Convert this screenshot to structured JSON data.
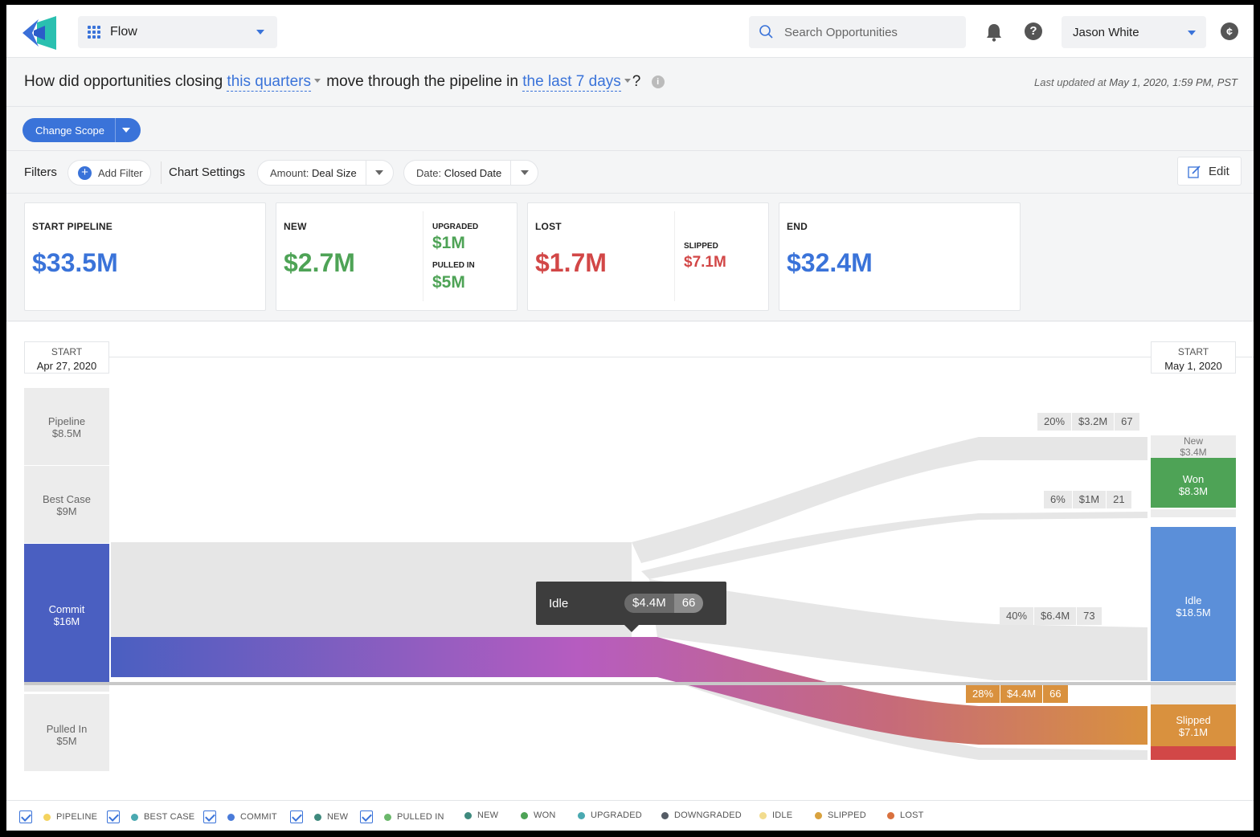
{
  "app": {
    "selector_label": "Flow"
  },
  "search": {
    "placeholder": "Search Opportunities"
  },
  "user": {
    "name": "Jason White"
  },
  "question": {
    "prefix": "How did opportunities closing",
    "scope_pick": "this quarters",
    "middle": "move through the pipeline in",
    "period_pick": "the last 7 days",
    "suffix": "?"
  },
  "updated": {
    "prefix": "Last updated at",
    "value": "May 1, 2020, 1:59 PM, PST"
  },
  "scope_button": "Change Scope",
  "filters": {
    "title": "Filters",
    "add_filter": "Add Filter",
    "chart_settings_title": "Chart Settings",
    "amount_prefix": "Amount:",
    "amount_value": "Deal Size",
    "date_prefix": "Date:",
    "date_value": "Closed Date",
    "edit": "Edit"
  },
  "kpis": {
    "start": {
      "title": "START PIPELINE",
      "value": "$33.5M"
    },
    "new": {
      "title": "NEW",
      "value": "$2.7M",
      "sub1_title": "UPGRADED",
      "sub1_value": "$1M",
      "sub2_title": "PULLED IN",
      "sub2_value": "$5M"
    },
    "lost": {
      "title": "LOST",
      "value": "$1.7M",
      "sub1_title": "SLIPPED",
      "sub1_value": "$7.1M"
    },
    "end": {
      "title": "END",
      "value": "$32.4M"
    }
  },
  "chart": {
    "left_header": {
      "label": "START",
      "date": "Apr 27, 2020"
    },
    "right_header": {
      "label": "START",
      "date": "May 1, 2020"
    },
    "left_stages": [
      {
        "name": "Pipeline",
        "amount": "$8.5M"
      },
      {
        "name": "Best Case",
        "amount": "$9M"
      },
      {
        "name": "Commit",
        "amount": "$16M"
      },
      {
        "name": "Pulled In",
        "amount": "$5M"
      }
    ],
    "right_stages": [
      {
        "name": "New",
        "amount": "$3.4M"
      },
      {
        "name": "Won",
        "amount": "$8.3M"
      },
      {
        "name": "Idle",
        "amount": "$18.5M"
      },
      {
        "name": "Slipped",
        "amount": "$7.1M"
      }
    ],
    "flow_tags": [
      {
        "pct": "20%",
        "amt": "$3.2M",
        "count": "67"
      },
      {
        "pct": "6%",
        "amt": "$1M",
        "count": "21"
      },
      {
        "pct": "40%",
        "amt": "$6.4M",
        "count": "73"
      },
      {
        "pct": "28%",
        "amt": "$4.4M",
        "count": "66"
      }
    ],
    "tooltip": {
      "label": "Idle",
      "amount": "$4.4M",
      "count": "66"
    },
    "colors": {
      "commit": "#4a5fc1",
      "won": "#4ea356",
      "idle": "#5b8fd9",
      "slipped": "#d9913e",
      "lost": "#d24747",
      "stage_grey": "#ececec"
    }
  },
  "legend": [
    {
      "label": "PIPELINE",
      "color": "#f4d35e",
      "checkbox": true
    },
    {
      "label": "BEST CASE",
      "color": "#4aa9b1",
      "checkbox": true
    },
    {
      "label": "COMMIT",
      "color": "#4a7bd9",
      "checkbox": true
    },
    {
      "label": "NEW",
      "color": "#3f8a7e",
      "checkbox": true
    },
    {
      "label": "PULLED IN",
      "color": "#6bb86b",
      "checkbox": true
    },
    {
      "label": "NEW",
      "color": "#3f8a7e",
      "checkbox": false
    },
    {
      "label": "WON",
      "color": "#4ea356",
      "checkbox": false
    },
    {
      "label": "UPGRADED",
      "color": "#4aa9b1",
      "checkbox": false
    },
    {
      "label": "DOWNGRADED",
      "color": "#555c66",
      "checkbox": false
    },
    {
      "label": "IDLE",
      "color": "#f2dc8e",
      "checkbox": false
    },
    {
      "label": "SLIPPED",
      "color": "#d9a23e",
      "checkbox": false
    },
    {
      "label": "LOST",
      "color": "#d9713e",
      "checkbox": false
    }
  ]
}
